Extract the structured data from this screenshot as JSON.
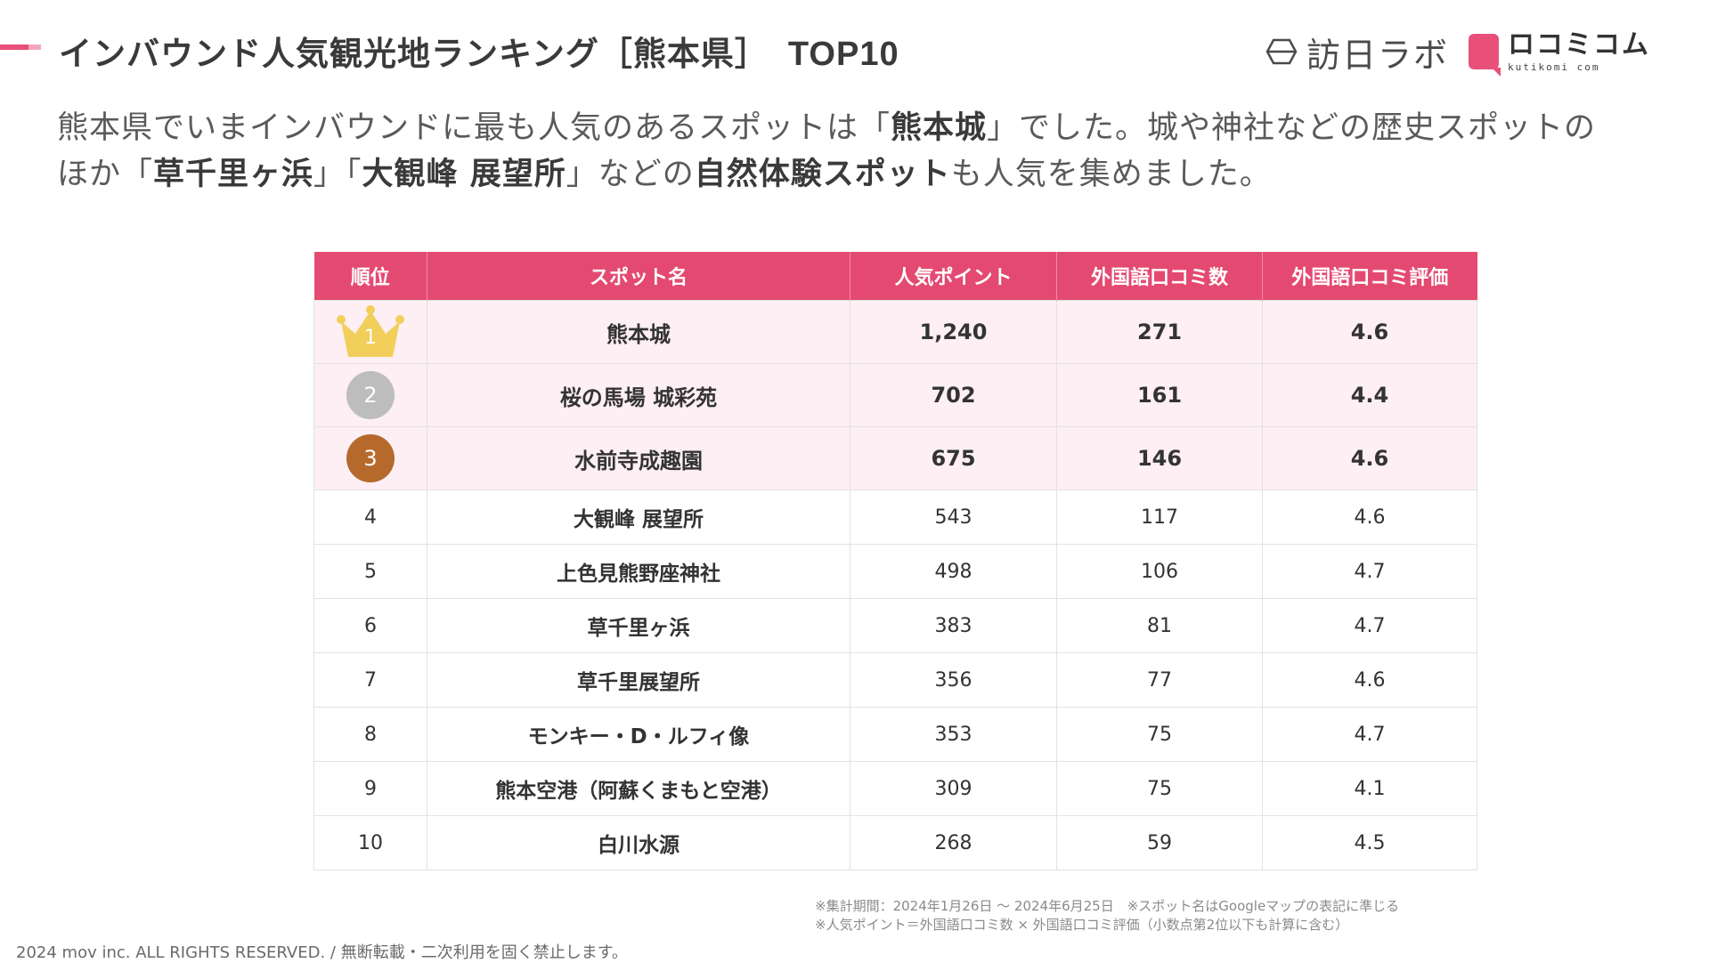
{
  "header": {
    "title": "インバウンド人気観光地ランキング［熊本県］",
    "title_en": "TOP10",
    "logo_primary": "訪日ラボ",
    "logo_secondary": "ロコミコム",
    "logo_secondary_sub": "kutikomi com"
  },
  "intro": {
    "l1_a": "熊本県でいまインバウンドに最も人気のあるスポットは「",
    "l1_b": "熊本城",
    "l1_c": "」でした。城や神社などの歴史スポットの",
    "l2_a": "ほか「",
    "l2_b": "草千里ヶ浜",
    "l2_c": "」「",
    "l2_d": "大観峰 展望所",
    "l2_e": "」などの",
    "l2_f": "自然体験スポット",
    "l2_g": "も人気を集めました。"
  },
  "table": {
    "headers": [
      "順位",
      "スポット名",
      "人気ポイント",
      "外国語口コミ数",
      "外国語口コミ評価"
    ],
    "rows": [
      {
        "rank": "1",
        "name": "熊本城",
        "points": "1,240",
        "reviews": "271",
        "rating": "4.6"
      },
      {
        "rank": "2",
        "name": "桜の馬場 城彩苑",
        "points": "702",
        "reviews": "161",
        "rating": "4.4"
      },
      {
        "rank": "3",
        "name": "水前寺成趣園",
        "points": "675",
        "reviews": "146",
        "rating": "4.6"
      },
      {
        "rank": "4",
        "name": "大観峰 展望所",
        "points": "543",
        "reviews": "117",
        "rating": "4.6"
      },
      {
        "rank": "5",
        "name": "上色見熊野座神社",
        "points": "498",
        "reviews": "106",
        "rating": "4.7"
      },
      {
        "rank": "6",
        "name": "草千里ヶ浜",
        "points": "383",
        "reviews": "81",
        "rating": "4.7"
      },
      {
        "rank": "7",
        "name": "草千里展望所",
        "points": "356",
        "reviews": "77",
        "rating": "4.6"
      },
      {
        "rank": "8",
        "name": "モンキー・D・ルフィ像",
        "points": "353",
        "reviews": "75",
        "rating": "4.7"
      },
      {
        "rank": "9",
        "name": "熊本空港（阿蘇くまもと空港）",
        "points": "309",
        "reviews": "75",
        "rating": "4.1"
      },
      {
        "rank": "10",
        "name": "白川水源",
        "points": "268",
        "reviews": "59",
        "rating": "4.5"
      }
    ]
  },
  "notes": {
    "line1": "※集計期間：2024年1月26日 〜 2024年6月25日　※スポット名はGoogleマップの表記に準じる",
    "line2": "※人気ポイント＝外国語口コミ数 × 外国語口コミ評価（小数点第2位以下も計算に含む）"
  },
  "footer": {
    "copyright": "2024 mov inc. ALL RIGHTS RESERVED. / 無断転載・二次利用を固く禁止します。"
  },
  "colors": {
    "accent": "#e44a71",
    "top_row_bg": "#fdeff3",
    "gold": "#f2cf5b",
    "silver": "#bdbdbd",
    "bronze": "#b56a2c"
  },
  "icons": {
    "rank1": "crown-icon",
    "rank2": "silver-medal-icon",
    "rank3": "bronze-medal-icon"
  }
}
